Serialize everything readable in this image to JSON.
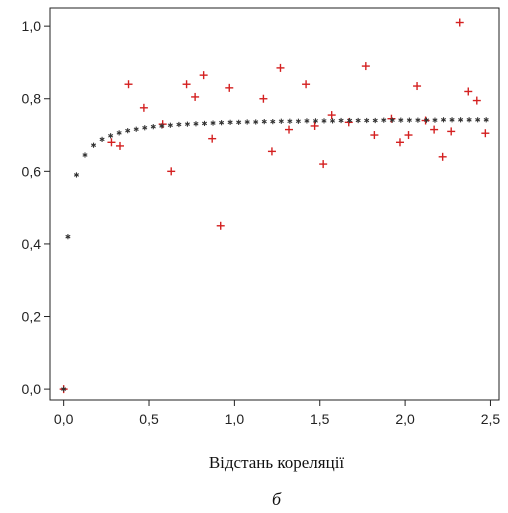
{
  "chart_data": {
    "type": "scatter",
    "xlabel": "Відстань кореляції",
    "ylabel": "",
    "xlim": [
      -0.08,
      2.55
    ],
    "ylim": [
      -0.03,
      1.05
    ],
    "x_ticks": [
      0.0,
      0.5,
      1.0,
      1.5,
      2.0,
      2.5
    ],
    "x_tick_labels": [
      "0,0",
      "0,5",
      "1,0",
      "1,5",
      "2,0",
      "2,5"
    ],
    "y_ticks": [
      0.0,
      0.2,
      0.4,
      0.6,
      0.8,
      1.0
    ],
    "y_tick_labels": [
      "0,0",
      "0,2",
      "0,4",
      "0,6",
      "0,8",
      "1,0"
    ],
    "grid": false,
    "caption": "б",
    "series": [
      {
        "marker": "plus",
        "color": "#d42020",
        "points": [
          [
            0.0,
            0.0
          ],
          [
            0.28,
            0.68
          ],
          [
            0.33,
            0.67
          ],
          [
            0.38,
            0.84
          ],
          [
            0.47,
            0.775
          ],
          [
            0.58,
            0.73
          ],
          [
            0.63,
            0.6
          ],
          [
            0.72,
            0.84
          ],
          [
            0.77,
            0.805
          ],
          [
            0.82,
            0.865
          ],
          [
            0.87,
            0.69
          ],
          [
            0.92,
            0.45
          ],
          [
            0.97,
            0.83
          ],
          [
            1.17,
            0.8
          ],
          [
            1.22,
            0.655
          ],
          [
            1.27,
            0.885
          ],
          [
            1.32,
            0.715
          ],
          [
            1.42,
            0.84
          ],
          [
            1.47,
            0.725
          ],
          [
            1.52,
            0.62
          ],
          [
            1.57,
            0.755
          ],
          [
            1.67,
            0.735
          ],
          [
            1.77,
            0.89
          ],
          [
            1.82,
            0.7
          ],
          [
            1.92,
            0.745
          ],
          [
            1.97,
            0.68
          ],
          [
            2.02,
            0.7
          ],
          [
            2.07,
            0.835
          ],
          [
            2.12,
            0.74
          ],
          [
            2.17,
            0.715
          ],
          [
            2.22,
            0.64
          ],
          [
            2.27,
            0.71
          ],
          [
            2.32,
            1.01
          ],
          [
            2.37,
            0.82
          ],
          [
            2.42,
            0.795
          ],
          [
            2.47,
            0.705
          ]
        ]
      },
      {
        "marker": "asterisk",
        "color": "#333333",
        "points": [
          [
            0.0,
            0.0
          ],
          [
            0.025,
            0.42
          ],
          [
            0.075,
            0.59
          ],
          [
            0.125,
            0.645
          ],
          [
            0.175,
            0.672
          ],
          [
            0.225,
            0.688
          ],
          [
            0.275,
            0.698
          ],
          [
            0.325,
            0.706
          ],
          [
            0.375,
            0.712
          ],
          [
            0.425,
            0.716
          ],
          [
            0.475,
            0.72
          ],
          [
            0.525,
            0.723
          ],
          [
            0.575,
            0.725
          ],
          [
            0.625,
            0.727
          ],
          [
            0.675,
            0.729
          ],
          [
            0.725,
            0.73
          ],
          [
            0.775,
            0.731
          ],
          [
            0.825,
            0.732
          ],
          [
            0.875,
            0.733
          ],
          [
            0.925,
            0.734
          ],
          [
            0.975,
            0.735
          ],
          [
            1.025,
            0.735
          ],
          [
            1.075,
            0.736
          ],
          [
            1.125,
            0.736
          ],
          [
            1.175,
            0.737
          ],
          [
            1.225,
            0.737
          ],
          [
            1.275,
            0.738
          ],
          [
            1.325,
            0.738
          ],
          [
            1.375,
            0.738
          ],
          [
            1.425,
            0.739
          ],
          [
            1.475,
            0.739
          ],
          [
            1.525,
            0.739
          ],
          [
            1.575,
            0.739
          ],
          [
            1.625,
            0.74
          ],
          [
            1.675,
            0.74
          ],
          [
            1.725,
            0.74
          ],
          [
            1.775,
            0.74
          ],
          [
            1.825,
            0.74
          ],
          [
            1.875,
            0.741
          ],
          [
            1.925,
            0.741
          ],
          [
            1.975,
            0.741
          ],
          [
            2.025,
            0.741
          ],
          [
            2.075,
            0.741
          ],
          [
            2.125,
            0.741
          ],
          [
            2.175,
            0.741
          ],
          [
            2.225,
            0.742
          ],
          [
            2.275,
            0.742
          ],
          [
            2.325,
            0.742
          ],
          [
            2.375,
            0.742
          ],
          [
            2.425,
            0.742
          ],
          [
            2.475,
            0.742
          ]
        ]
      }
    ]
  }
}
